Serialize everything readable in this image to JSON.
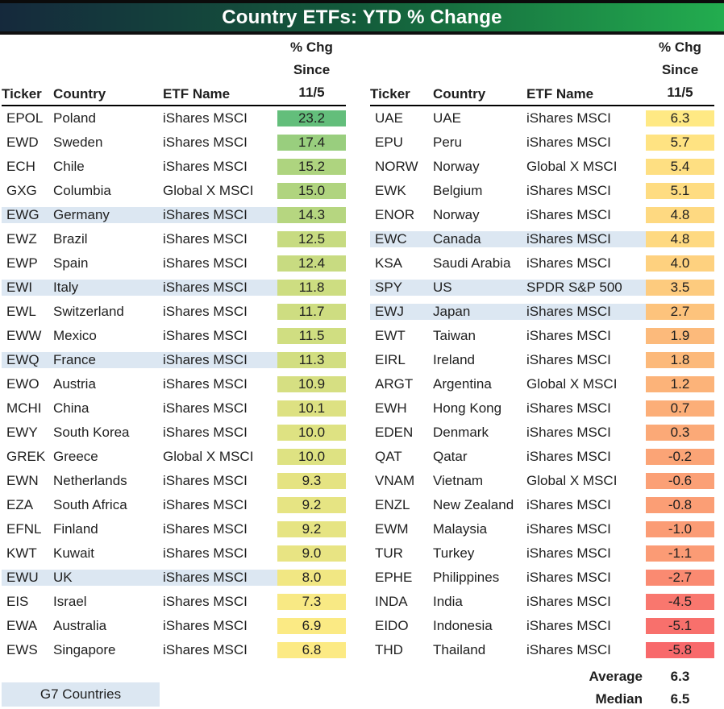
{
  "title_bar": {
    "title": "Country ETFs: YTD % Change",
    "gradient_left_color": "#15293C",
    "gradient_right_color": "#23AD4F",
    "text_color": "#FFFFFF"
  },
  "header": {
    "ticker": "Ticker",
    "country": "Country",
    "etf_name": "ETF Name",
    "chg_line1": "% Chg",
    "chg_line2": "Since",
    "chg_line3": "11/5"
  },
  "legend": {
    "g7_label": "G7 Countries"
  },
  "summary": {
    "average_label": "Average",
    "average_value": "6.3",
    "median_label": "Median",
    "median_value": "6.5"
  },
  "chart_data": {
    "type": "table",
    "title": "Country ETFs: YTD % Change",
    "columns": [
      "Ticker",
      "Country",
      "ETF Name",
      "% Chg Since 11/5"
    ],
    "color_scale": {
      "type": "3-color",
      "min_value": -5.8,
      "min_color": "#F8696B",
      "mid_value": 6.5,
      "mid_color": "#FFEB84",
      "max_value": 23.2,
      "max_color": "#63BE7B"
    },
    "g7_highlight_color": "#DCE7F2",
    "tables": [
      {
        "position": "left",
        "rows": [
          {
            "ticker": "EPOL",
            "country": "Poland",
            "etf": "iShares MSCI",
            "chg": "23.2",
            "g7": false
          },
          {
            "ticker": "EWD",
            "country": "Sweden",
            "etf": "iShares MSCI",
            "chg": "17.4",
            "g7": false
          },
          {
            "ticker": "ECH",
            "country": "Chile",
            "etf": "iShares MSCI",
            "chg": "15.2",
            "g7": false
          },
          {
            "ticker": "GXG",
            "country": "Columbia",
            "etf": "Global X MSCI",
            "chg": "15.0",
            "g7": false
          },
          {
            "ticker": "EWG",
            "country": "Germany",
            "etf": "iShares MSCI",
            "chg": "14.3",
            "g7": true
          },
          {
            "ticker": "EWZ",
            "country": "Brazil",
            "etf": "iShares MSCI",
            "chg": "12.5",
            "g7": false
          },
          {
            "ticker": "EWP",
            "country": "Spain",
            "etf": "iShares MSCI",
            "chg": "12.4",
            "g7": false
          },
          {
            "ticker": "EWI",
            "country": "Italy",
            "etf": "iShares MSCI",
            "chg": "11.8",
            "g7": true
          },
          {
            "ticker": "EWL",
            "country": "Switzerland",
            "etf": "iShares MSCI",
            "chg": "11.7",
            "g7": false
          },
          {
            "ticker": "EWW",
            "country": "Mexico",
            "etf": "iShares MSCI",
            "chg": "11.5",
            "g7": false
          },
          {
            "ticker": "EWQ",
            "country": "France",
            "etf": "iShares MSCI",
            "chg": "11.3",
            "g7": true
          },
          {
            "ticker": "EWO",
            "country": "Austria",
            "etf": "iShares MSCI",
            "chg": "10.9",
            "g7": false
          },
          {
            "ticker": "MCHI",
            "country": "China",
            "etf": "iShares MSCI",
            "chg": "10.1",
            "g7": false
          },
          {
            "ticker": "EWY",
            "country": "South Korea",
            "etf": "iShares MSCI",
            "chg": "10.0",
            "g7": false
          },
          {
            "ticker": "GREK",
            "country": "Greece",
            "etf": "Global X MSCI",
            "chg": "10.0",
            "g7": false
          },
          {
            "ticker": "EWN",
            "country": "Netherlands",
            "etf": "iShares MSCI",
            "chg": "9.3",
            "g7": false
          },
          {
            "ticker": "EZA",
            "country": "South Africa",
            "etf": "iShares MSCI",
            "chg": "9.2",
            "g7": false
          },
          {
            "ticker": "EFNL",
            "country": "Finland",
            "etf": "iShares MSCI",
            "chg": "9.2",
            "g7": false
          },
          {
            "ticker": "KWT",
            "country": "Kuwait",
            "etf": "iShares MSCI",
            "chg": "9.0",
            "g7": false
          },
          {
            "ticker": "EWU",
            "country": "UK",
            "etf": "iShares MSCI",
            "chg": "8.0",
            "g7": true
          },
          {
            "ticker": "EIS",
            "country": "Israel",
            "etf": "iShares MSCI",
            "chg": "7.3",
            "g7": false
          },
          {
            "ticker": "EWA",
            "country": "Australia",
            "etf": "iShares MSCI",
            "chg": "6.9",
            "g7": false
          },
          {
            "ticker": "EWS",
            "country": "Singapore",
            "etf": "iShares MSCI",
            "chg": "6.8",
            "g7": false
          }
        ]
      },
      {
        "position": "right",
        "rows": [
          {
            "ticker": "UAE",
            "country": "UAE",
            "etf": "iShares MSCI",
            "chg": "6.3",
            "g7": false
          },
          {
            "ticker": "EPU",
            "country": "Peru",
            "etf": "iShares MSCI",
            "chg": "5.7",
            "g7": false
          },
          {
            "ticker": "NORW",
            "country": "Norway",
            "etf": "Global X MSCI",
            "chg": "5.4",
            "g7": false
          },
          {
            "ticker": "EWK",
            "country": "Belgium",
            "etf": "iShares MSCI",
            "chg": "5.1",
            "g7": false
          },
          {
            "ticker": "ENOR",
            "country": "Norway",
            "etf": "iShares MSCI",
            "chg": "4.8",
            "g7": false
          },
          {
            "ticker": "EWC",
            "country": "Canada",
            "etf": "iShares MSCI",
            "chg": "4.8",
            "g7": true
          },
          {
            "ticker": "KSA",
            "country": "Saudi Arabia",
            "etf": "iShares MSCI",
            "chg": "4.0",
            "g7": false
          },
          {
            "ticker": "SPY",
            "country": "US",
            "etf": "SPDR S&P 500",
            "chg": "3.5",
            "g7": true
          },
          {
            "ticker": "EWJ",
            "country": "Japan",
            "etf": "iShares MSCI",
            "chg": "2.7",
            "g7": true
          },
          {
            "ticker": "EWT",
            "country": "Taiwan",
            "etf": "iShares MSCI",
            "chg": "1.9",
            "g7": false
          },
          {
            "ticker": "EIRL",
            "country": "Ireland",
            "etf": "iShares MSCI",
            "chg": "1.8",
            "g7": false
          },
          {
            "ticker": "ARGT",
            "country": "Argentina",
            "etf": "Global X MSCI",
            "chg": "1.2",
            "g7": false
          },
          {
            "ticker": "EWH",
            "country": "Hong Kong",
            "etf": "iShares MSCI",
            "chg": "0.7",
            "g7": false
          },
          {
            "ticker": "EDEN",
            "country": "Denmark",
            "etf": "iShares MSCI",
            "chg": "0.3",
            "g7": false
          },
          {
            "ticker": "QAT",
            "country": "Qatar",
            "etf": "iShares MSCI",
            "chg": "-0.2",
            "g7": false
          },
          {
            "ticker": "VNAM",
            "country": "Vietnam",
            "etf": "Global X MSCI",
            "chg": "-0.6",
            "g7": false
          },
          {
            "ticker": "ENZL",
            "country": "New Zealand",
            "etf": "iShares MSCI",
            "chg": "-0.8",
            "g7": false
          },
          {
            "ticker": "EWM",
            "country": "Malaysia",
            "etf": "iShares MSCI",
            "chg": "-1.0",
            "g7": false
          },
          {
            "ticker": "TUR",
            "country": "Turkey",
            "etf": "iShares MSCI",
            "chg": "-1.1",
            "g7": false
          },
          {
            "ticker": "EPHE",
            "country": "Philippines",
            "etf": "iShares MSCI",
            "chg": "-2.7",
            "g7": false
          },
          {
            "ticker": "INDA",
            "country": "India",
            "etf": "iShares MSCI",
            "chg": "-4.5",
            "g7": false
          },
          {
            "ticker": "EIDO",
            "country": "Indonesia",
            "etf": "iShares MSCI",
            "chg": "-5.1",
            "g7": false
          },
          {
            "ticker": "THD",
            "country": "Thailand",
            "etf": "iShares MSCI",
            "chg": "-5.8",
            "g7": false
          }
        ]
      }
    ],
    "summary": {
      "average": 6.3,
      "median": 6.5
    },
    "legend_label": "G7 Countries"
  }
}
